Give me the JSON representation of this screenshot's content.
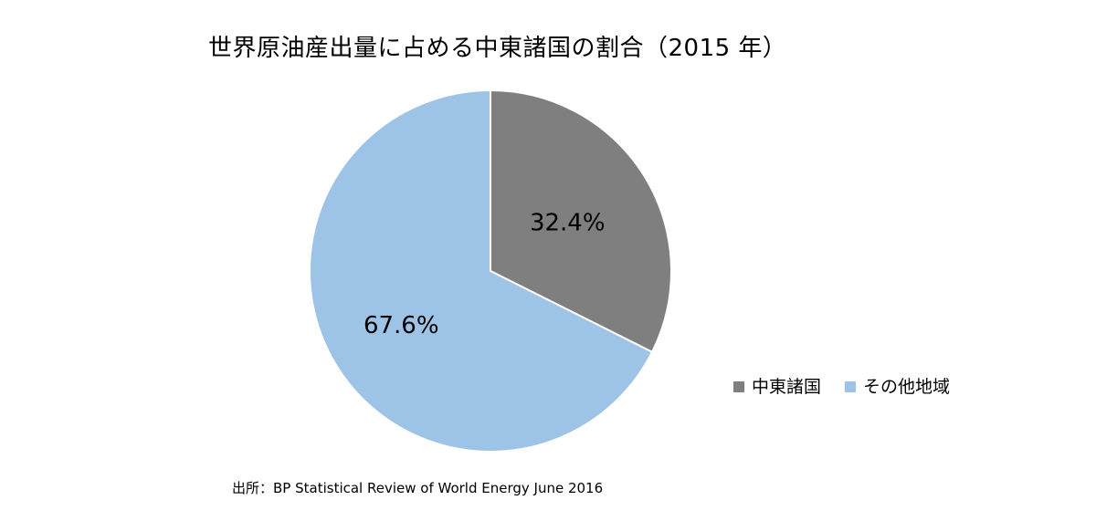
{
  "chart_data": {
    "type": "pie",
    "title": "世界原油産出量に占める中東諸国の割合（2015 年）",
    "categories": [
      "中東諸国",
      "その他地域"
    ],
    "values": [
      32.4,
      67.6
    ],
    "data_labels": [
      "32.4%",
      "67.6%"
    ],
    "colors": [
      "#7f7f7f",
      "#9dc3e6"
    ],
    "start_angle": "12 o'clock",
    "direction": "clockwise",
    "legend_position": "bottom-right",
    "unit": "%"
  },
  "source": "出所：BP Statistical Review of World Energy June 2016"
}
